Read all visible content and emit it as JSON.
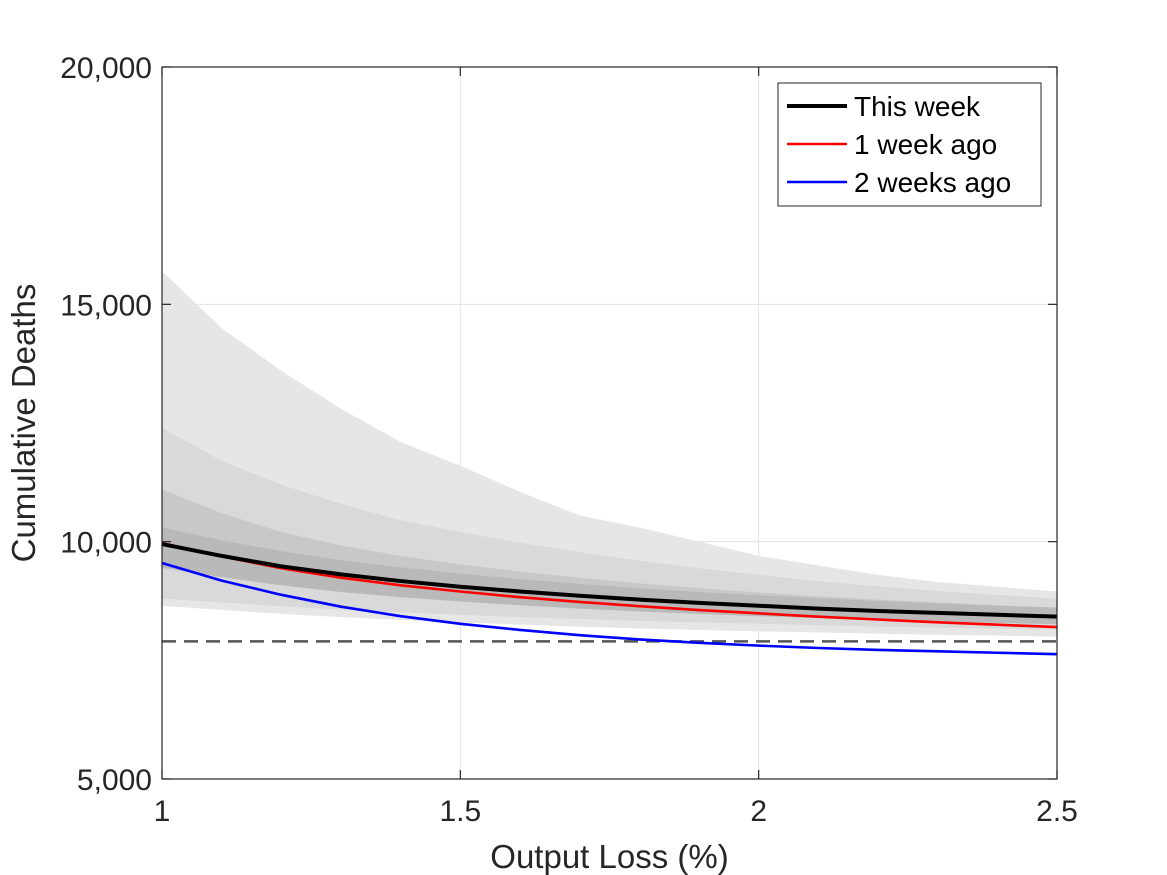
{
  "chart_data": {
    "type": "line",
    "title": "",
    "xlabel": "Output Loss (%)",
    "ylabel": "Cumulative Deaths",
    "xlim": [
      1,
      2.5
    ],
    "ylim": [
      5000,
      20000
    ],
    "x_ticks": [
      1,
      1.5,
      2,
      2.5
    ],
    "x_tick_labels": [
      "1",
      "1.5",
      "2",
      "2.5"
    ],
    "y_ticks": [
      5000,
      10000,
      15000,
      20000
    ],
    "y_tick_labels": [
      "5,000",
      "10,000",
      "15,000",
      "20,000"
    ],
    "grid": true,
    "legend_position": "top-right",
    "x": [
      1.0,
      1.1,
      1.2,
      1.3,
      1.4,
      1.5,
      1.6,
      1.7,
      1.8,
      1.9,
      2.0,
      2.1,
      2.2,
      2.3,
      2.4,
      2.5
    ],
    "series": [
      {
        "name": "This week",
        "color": "#000000",
        "values": [
          9950,
          9700,
          9480,
          9310,
          9170,
          9050,
          8950,
          8860,
          8780,
          8710,
          8650,
          8590,
          8540,
          8500,
          8460,
          8420
        ]
      },
      {
        "name": "1 week ago",
        "color": "#ff0000",
        "values": [
          9970,
          9690,
          9440,
          9240,
          9080,
          8950,
          8830,
          8730,
          8640,
          8560,
          8490,
          8420,
          8360,
          8300,
          8250,
          8200
        ]
      },
      {
        "name": "2 weeks ago",
        "color": "#0000ff",
        "values": [
          9550,
          9180,
          8880,
          8630,
          8430,
          8270,
          8140,
          8030,
          7940,
          7870,
          7810,
          7760,
          7720,
          7690,
          7660,
          7630
        ]
      }
    ],
    "reference_line": {
      "y": 7900,
      "style": "dashed",
      "color": "#555555"
    },
    "bands": [
      {
        "color": "#e6e6e6",
        "upper": [
          15700,
          14500,
          13600,
          12800,
          12100,
          11600,
          11050,
          10550,
          10300,
          10000,
          9700,
          9500,
          9300,
          9150,
          9050,
          8950
        ],
        "lower": [
          8650,
          8560,
          8480,
          8410,
          8350,
          8300,
          8250,
          8210,
          8170,
          8140,
          8110,
          8090,
          8060,
          8040,
          8020,
          8000
        ]
      },
      {
        "color": "#d9d9d9",
        "upper": [
          12400,
          11700,
          11200,
          10800,
          10450,
          10200,
          9980,
          9780,
          9600,
          9440,
          9300,
          9170,
          9060,
          8960,
          8880,
          8800
        ],
        "lower": [
          8800,
          8720,
          8640,
          8570,
          8510,
          8460,
          8410,
          8370,
          8330,
          8300,
          8270,
          8240,
          8210,
          8190,
          8170,
          8150
        ]
      },
      {
        "color": "#c8c8c8",
        "upper": [
          11100,
          10600,
          10200,
          9920,
          9700,
          9520,
          9370,
          9240,
          9120,
          9020,
          8930,
          8850,
          8780,
          8720,
          8660,
          8610
        ]
      },
      {
        "color": "#b9b9b9",
        "upper": [
          10300,
          10030,
          9800,
          9610,
          9460,
          9330,
          9210,
          9110,
          9020,
          8940,
          8870,
          8810,
          8750,
          8700,
          8650,
          8610
        ],
        "lower": [
          9450,
          9250,
          9080,
          8940,
          8830,
          8740,
          8660,
          8590,
          8530,
          8480,
          8430,
          8390,
          8350,
          8320,
          8290,
          8260
        ]
      }
    ]
  }
}
